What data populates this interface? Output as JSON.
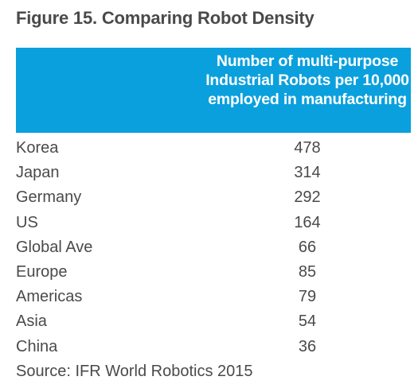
{
  "figure": {
    "title": "Figure 15. Comparing Robot Density",
    "column_header": "Number of multi-purpose Industrial Robots per 10,000 employed in manufacturing",
    "source": "Source: IFR World Robotics 2015"
  },
  "colors": {
    "header_band": "#0aa0dd",
    "header_text": "#ffffff",
    "body_text": "#4a4a4a"
  },
  "chart_data": {
    "type": "table",
    "title": "Figure 15. Comparing Robot Density",
    "columns": [
      "",
      "Number of multi-purpose Industrial Robots per 10,000 employed in manufacturing"
    ],
    "rows": [
      {
        "label": "Korea",
        "value": "478"
      },
      {
        "label": "Japan",
        "value": "314"
      },
      {
        "label": "Germany",
        "value": "292"
      },
      {
        "label": "US",
        "value": "164"
      },
      {
        "label": "Global Ave",
        "value": "66"
      },
      {
        "label": "Europe",
        "value": "85"
      },
      {
        "label": "Americas",
        "value": "79"
      },
      {
        "label": "Asia",
        "value": "54"
      },
      {
        "label": "China",
        "value": "36"
      }
    ],
    "source": "Source: IFR World Robotics 2015"
  }
}
